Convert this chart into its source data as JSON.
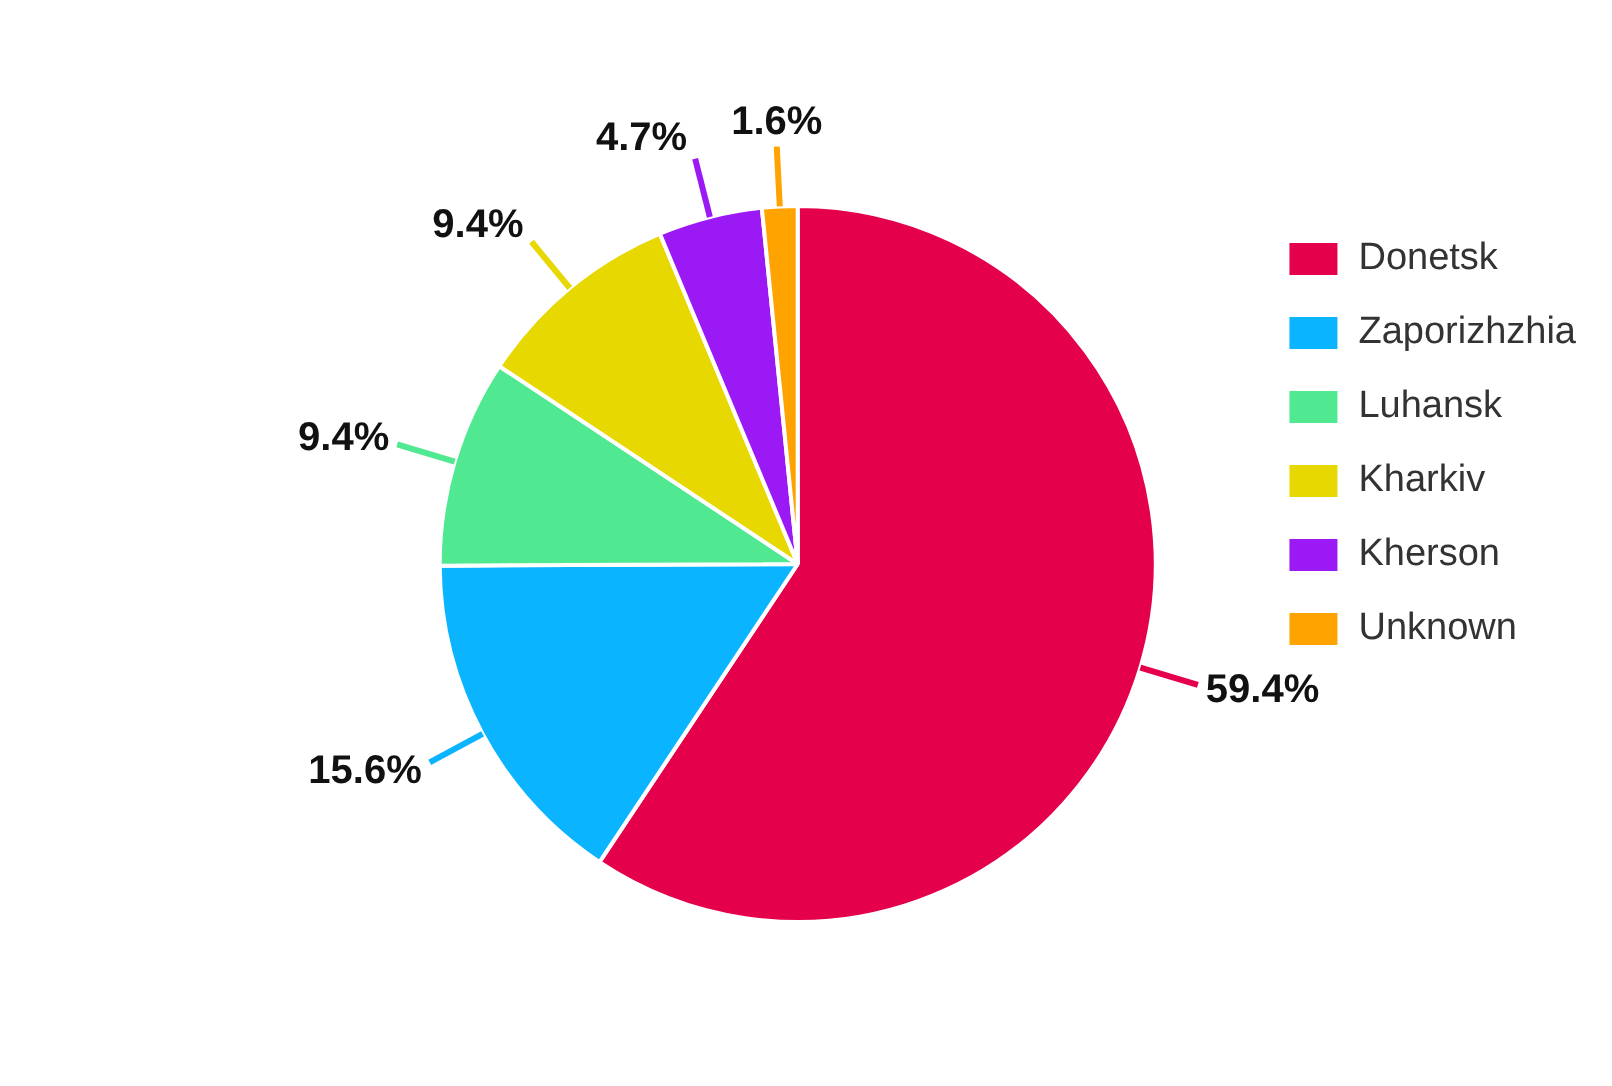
{
  "chart_data": {
    "type": "pie",
    "categories": [
      "Donetsk",
      "Zaporizhzhia",
      "Luhansk",
      "Kharkiv",
      "Kherson",
      "Unknown"
    ],
    "values": [
      59.4,
      15.6,
      9.4,
      9.4,
      4.7,
      1.6
    ],
    "colors": [
      "#e5004c",
      "#0bb4ff",
      "#50e991",
      "#e6d800",
      "#9b19f5",
      "#ffa300"
    ],
    "value_labels": [
      "59.4%",
      "15.6%",
      "9.4%",
      "9.4%",
      "4.7%",
      "1.6%"
    ],
    "legend": "top right"
  }
}
